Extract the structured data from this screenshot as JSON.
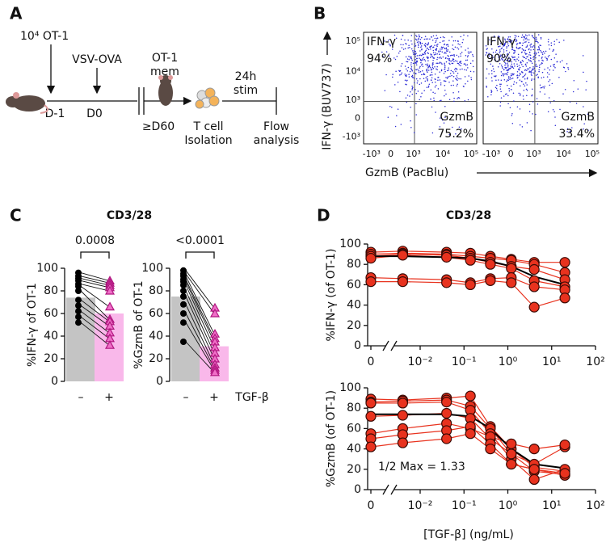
{
  "panel_labels": [
    "A",
    "B",
    "C",
    "D"
  ],
  "titles": [
    "CD3/28",
    "CD3/28"
  ],
  "diagram": {
    "dose": "10⁴ OT-1",
    "infection": "VSV-OVA",
    "day_minus1": "D-1",
    "day0": "D0",
    "memory": [
      "OT-1",
      "mem"
    ],
    "day60": "≥D60",
    "isolation": [
      "T cell",
      "Isolation"
    ],
    "stim": [
      "24h",
      "stim"
    ],
    "analysis": [
      "Flow",
      "analysis"
    ]
  },
  "chart_data": [
    {
      "type": "flow",
      "y_label": "IFN-γ (BUV737)",
      "x_label": "GzmB (PacBlu)",
      "ytick_labels": [
        "10⁵",
        "10⁴",
        "10³",
        "0",
        "-10³"
      ],
      "xtick_labels": [
        "-10³",
        "0",
        "10³",
        "10⁴",
        "10⁵"
      ],
      "plots": [
        {
          "upper": [
            "IFN-γ",
            "94%"
          ],
          "lower": [
            "GzmB",
            "75.2%"
          ]
        },
        {
          "upper": [
            "IFN-γ",
            "90%"
          ],
          "lower": [
            "GzmB",
            "33.4%"
          ]
        }
      ]
    },
    {
      "type": "paired-bar",
      "y_label": "%IFN-γ of OT-1",
      "categories": [
        "–",
        "+"
      ],
      "bar_values": [
        74,
        60
      ],
      "bar_colors": [
        "#c4c4c4",
        "#f9b8ea"
      ],
      "before": [
        96,
        93,
        91,
        89,
        86,
        84,
        80,
        72,
        67,
        62,
        57,
        52
      ],
      "after": [
        89,
        87,
        85,
        83,
        80,
        66,
        55,
        53,
        49,
        43,
        38,
        32
      ],
      "ylim": [
        0,
        100
      ],
      "yticks": [
        0,
        20,
        40,
        60,
        80,
        100
      ],
      "annotation": "0.0008"
    },
    {
      "type": "paired-bar",
      "y_label": "%GzmB of OT-1",
      "categories": [
        "–",
        "+"
      ],
      "x_label": "TGF-β",
      "bar_values": [
        75,
        31
      ],
      "bar_colors": [
        "#c4c4c4",
        "#f9b8ea"
      ],
      "before": [
        98,
        95,
        93,
        90,
        88,
        85,
        80,
        75,
        68,
        60,
        52,
        35
      ],
      "after": [
        65,
        60,
        42,
        38,
        35,
        30,
        25,
        20,
        15,
        12,
        10,
        8
      ],
      "ylim": [
        0,
        100
      ],
      "yticks": [
        0,
        20,
        40,
        60,
        80,
        100
      ],
      "annotation": "<0.0001"
    },
    {
      "type": "dose-line",
      "y_label": "%IFN-γ (of OT-1)",
      "xlog": true,
      "x": [
        0,
        0.004,
        0.04,
        0.14,
        0.4,
        1.2,
        4,
        20
      ],
      "xlim": [
        0,
        100
      ],
      "xticks": [
        0,
        {
          "value": 0.01,
          "label": "10⁻²"
        },
        {
          "value": 0.1,
          "label": "10⁻¹"
        },
        {
          "value": 1,
          "label": "10⁰"
        },
        {
          "value": 10,
          "label": "10¹"
        },
        {
          "value": 100,
          "label": "10²"
        }
      ],
      "ylim": [
        0,
        100
      ],
      "yticks": [
        0,
        20,
        40,
        60,
        80,
        100
      ],
      "series": [
        {
          "color": "#e8321e",
          "values": [
            92,
            93,
            92,
            91,
            88,
            85,
            82,
            82
          ]
        },
        {
          "color": "#e8321e",
          "values": [
            90,
            91,
            90,
            88,
            86,
            84,
            80,
            72
          ]
        },
        {
          "color": "#e8321e",
          "values": [
            88,
            90,
            89,
            86,
            82,
            78,
            75,
            65
          ]
        },
        {
          "color": "#e8321e",
          "values": [
            86,
            89,
            87,
            84,
            80,
            76,
            64,
            58
          ]
        },
        {
          "color": "#e8321e",
          "values": [
            67,
            66,
            65,
            62,
            66,
            67,
            58,
            55
          ]
        },
        {
          "color": "#e8321e",
          "values": [
            63,
            63,
            62,
            60,
            64,
            62,
            38,
            47
          ]
        },
        {
          "color": "#000000",
          "fit": true,
          "values": [
            88,
            88,
            87,
            86,
            83,
            78,
            68,
            60
          ]
        }
      ]
    },
    {
      "type": "dose-line",
      "y_label": "%GzmB (of OT-1)",
      "xlog": true,
      "x_label": "[TGF-β] (ng/mL)",
      "annotation": "1/2 Max = 1.33",
      "x": [
        0,
        0.004,
        0.04,
        0.14,
        0.4,
        1.2,
        4,
        20
      ],
      "xlim": [
        0,
        100
      ],
      "xticks": [
        0,
        {
          "value": 0.01,
          "label": "10⁻²"
        },
        {
          "value": 0.1,
          "label": "10⁻¹"
        },
        {
          "value": 1,
          "label": "10⁰"
        },
        {
          "value": 10,
          "label": "10¹"
        },
        {
          "value": 100,
          "label": "10²"
        }
      ],
      "ylim": [
        0,
        100
      ],
      "yticks": [
        0,
        20,
        40,
        60,
        80,
        100
      ],
      "series": [
        {
          "color": "#e8321e",
          "values": [
            89,
            88,
            90,
            92,
            62,
            40,
            22,
            18
          ]
        },
        {
          "color": "#e8321e",
          "values": [
            86,
            87,
            88,
            82,
            60,
            35,
            18,
            15
          ]
        },
        {
          "color": "#e8321e",
          "values": [
            85,
            85,
            86,
            78,
            55,
            30,
            10,
            20
          ]
        },
        {
          "color": "#e8321e",
          "values": [
            72,
            73,
            75,
            70,
            50,
            35,
            25,
            42
          ]
        },
        {
          "color": "#e8321e",
          "values": [
            55,
            60,
            65,
            60,
            52,
            45,
            40,
            44
          ]
        },
        {
          "color": "#e8321e",
          "values": [
            50,
            54,
            58,
            62,
            45,
            25,
            20,
            14
          ]
        },
        {
          "color": "#e8321e",
          "values": [
            42,
            46,
            50,
            55,
            40,
            25,
            20,
            16
          ]
        },
        {
          "color": "#000000",
          "fit": true,
          "values": [
            74,
            74,
            74,
            72,
            60,
            40,
            25,
            21
          ]
        }
      ]
    }
  ]
}
